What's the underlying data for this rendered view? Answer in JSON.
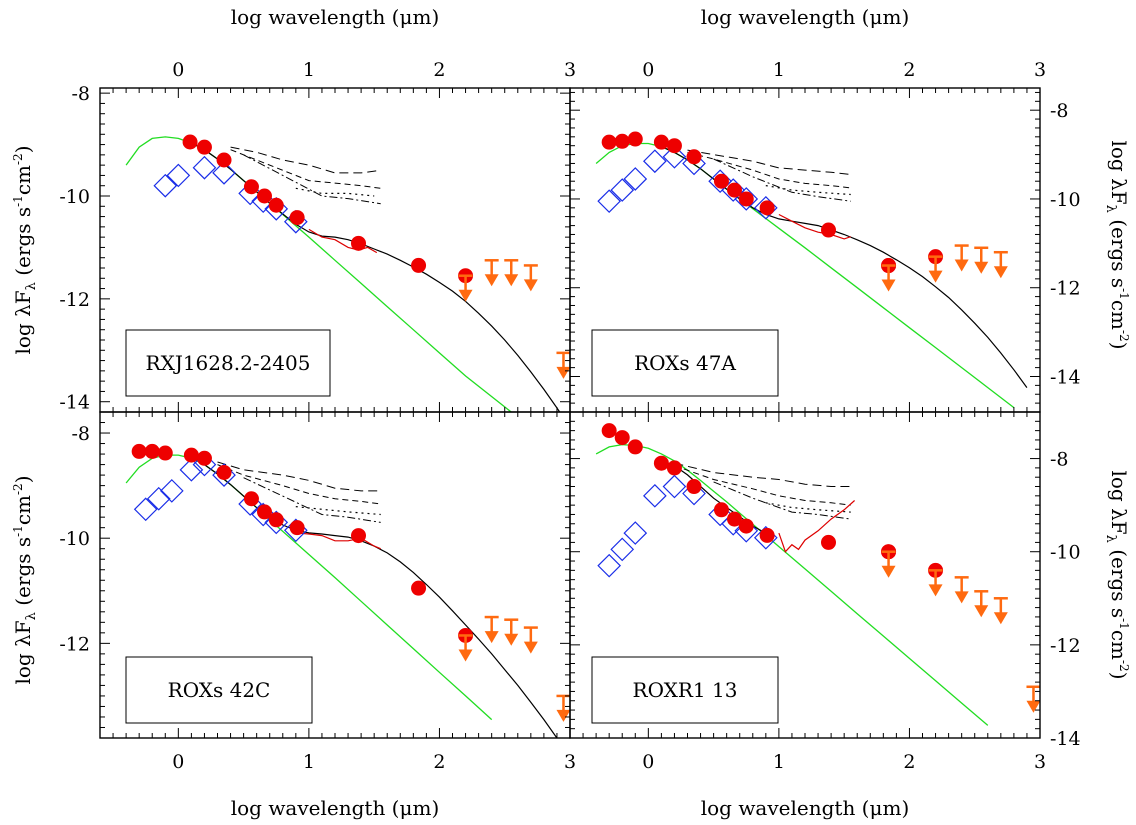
{
  "colors": {
    "photosphere": "#22dd22",
    "model": "#000000",
    "photometry": "#ee0000",
    "irs_spectrum": "#dd0000",
    "vlt_points": "#1a2ee8",
    "upper_limits": "#ff6a10"
  },
  "axis_text": {
    "xlabel": "log wavelength (μm)",
    "ylabel_left": "log λF",
    "ylabel_right": "log λF",
    "ylabel_sub": "λ",
    "ylabel_units": "(ergs s",
    "ylabel_units_tail": "cm",
    "ylabel_units_end": ")",
    "exp_neg1": "-1",
    "exp_neg2": "-2"
  },
  "chart_data": [
    {
      "type": "scatter",
      "label": "RXJ1628.2-2405",
      "xlim": [
        -0.6,
        3.0
      ],
      "ylim": [
        -14.2,
        -7.9
      ],
      "xticks": [
        "0",
        "1",
        "2",
        "3"
      ],
      "yticks": [
        "-8",
        "-10",
        "-12",
        "-14"
      ],
      "photometry_x": [
        0.09,
        0.2,
        0.35,
        0.56,
        0.66,
        0.75,
        0.91,
        1.38,
        1.84
      ],
      "photometry_y": [
        -8.95,
        -9.05,
        -9.3,
        -9.82,
        -10.0,
        -10.18,
        -10.42,
        -10.92,
        -11.35
      ],
      "vlt_x": [
        -0.1,
        0.0,
        0.2,
        0.35,
        0.55,
        0.65,
        0.75,
        0.9
      ],
      "vlt_y": [
        -9.8,
        -9.6,
        -9.45,
        -9.55,
        -9.95,
        -10.1,
        -10.25,
        -10.5
      ],
      "upper_limit_circles_x": [
        2.2
      ],
      "upper_limit_circles_y": [
        -11.55
      ],
      "upper_limits_x": [
        2.2,
        2.4,
        2.55,
        2.7,
        2.95
      ],
      "upper_limits_y": [
        -11.55,
        -11.25,
        -11.25,
        -11.35,
        -13.05
      ],
      "spectrum_x": [
        1.0,
        1.1,
        1.2,
        1.3,
        1.38,
        1.45,
        1.52
      ],
      "spectrum_y": [
        -10.65,
        -10.8,
        -10.85,
        -11.0,
        -11.05,
        -11.0,
        -11.1
      ],
      "photosphere_x": [
        -0.4,
        -0.3,
        -0.2,
        -0.1,
        0.0,
        0.1,
        0.2,
        0.3,
        0.4,
        0.5,
        0.6,
        0.7,
        0.8,
        0.9,
        1.0,
        1.2,
        1.4,
        1.6,
        1.8,
        2.0,
        2.2,
        2.5,
        2.8,
        3.0
      ],
      "photosphere_y": [
        -9.4,
        -9.05,
        -8.88,
        -8.85,
        -8.88,
        -8.97,
        -9.1,
        -9.28,
        -9.48,
        -9.7,
        -9.92,
        -10.14,
        -10.36,
        -10.58,
        -10.8,
        -11.25,
        -11.7,
        -12.15,
        -12.6,
        -13.05,
        -13.5,
        -14.1,
        -14.7,
        -15.1
      ],
      "model_x": [
        0.1,
        0.2,
        0.3,
        0.4,
        0.5,
        0.6,
        0.7,
        0.8,
        0.9,
        1.0,
        1.1,
        1.2,
        1.3,
        1.4,
        1.5,
        1.6,
        1.7,
        1.8,
        1.9,
        2.0,
        2.1,
        2.2,
        2.3,
        2.4,
        2.5,
        2.6,
        2.7,
        2.8,
        2.9,
        3.0
      ],
      "model_y": [
        -8.97,
        -9.1,
        -9.28,
        -9.48,
        -9.7,
        -9.92,
        -10.14,
        -10.35,
        -10.55,
        -10.7,
        -10.78,
        -10.8,
        -10.85,
        -10.93,
        -11.03,
        -11.13,
        -11.25,
        -11.38,
        -11.52,
        -11.68,
        -11.85,
        -12.05,
        -12.28,
        -12.53,
        -12.8,
        -13.1,
        -13.42,
        -13.76,
        -14.12,
        -14.5
      ],
      "dashed_a_x": [
        0.4,
        0.6,
        0.8,
        1.0,
        1.2,
        1.4,
        1.55
      ],
      "dashed_a_y": [
        -9.05,
        -9.15,
        -9.3,
        -9.4,
        -9.55,
        -9.55,
        -9.5
      ],
      "dashed_b_x": [
        0.4,
        0.6,
        0.8,
        1.0,
        1.2,
        1.4,
        1.55
      ],
      "dashed_b_y": [
        -9.1,
        -9.3,
        -9.5,
        -9.7,
        -9.75,
        -9.8,
        -9.85
      ],
      "dotted_x": [
        0.9,
        1.1,
        1.3,
        1.5
      ],
      "dotted_y": [
        -9.85,
        -9.95,
        -9.95,
        -10.0
      ],
      "dashdot_x": [
        0.5,
        0.8,
        1.1,
        1.3,
        1.55
      ],
      "dashdot_y": [
        -9.2,
        -9.6,
        -10.0,
        -10.05,
        -10.15
      ]
    },
    {
      "type": "scatter",
      "label": "ROXs 47A",
      "xlim": [
        -0.6,
        3.0
      ],
      "ylim": [
        -14.8,
        -7.5
      ],
      "xticks": [
        "0",
        "1",
        "2",
        "3"
      ],
      "yticks": [
        "-8",
        "-10",
        "-12",
        "-14"
      ],
      "photometry_x": [
        -0.3,
        -0.2,
        -0.1,
        0.1,
        0.2,
        0.35,
        0.56,
        0.66,
        0.75,
        0.91,
        1.38,
        1.84
      ],
      "photometry_y": [
        -8.72,
        -8.7,
        -8.65,
        -8.72,
        -8.8,
        -9.05,
        -9.6,
        -9.8,
        -10.0,
        -10.2,
        -10.7,
        -11.5
      ],
      "vlt_x": [
        -0.3,
        -0.2,
        -0.1,
        0.05,
        0.2,
        0.35,
        0.55,
        0.65,
        0.75,
        0.9
      ],
      "vlt_y": [
        -10.05,
        -9.8,
        -9.55,
        -9.15,
        -9.05,
        -9.2,
        -9.6,
        -9.8,
        -10.0,
        -10.2
      ],
      "upper_limit_circles_x": [
        1.84,
        2.2
      ],
      "upper_limit_circles_y": [
        -11.5,
        -11.3
      ],
      "upper_limits_x": [
        1.84,
        2.2,
        2.4,
        2.55,
        2.7
      ],
      "upper_limits_y": [
        -11.5,
        -11.3,
        -11.05,
        -11.1,
        -11.2
      ],
      "spectrum_x": [
        1.0,
        1.1,
        1.2,
        1.3,
        1.4,
        1.5,
        1.55
      ],
      "spectrum_y": [
        -10.35,
        -10.5,
        -10.65,
        -10.75,
        -10.8,
        -10.9,
        -10.85
      ],
      "photosphere_x": [
        -0.4,
        -0.3,
        -0.2,
        -0.1,
        0.0,
        0.1,
        0.2,
        0.3,
        0.4,
        0.5,
        0.6,
        0.7,
        0.8,
        0.9,
        1.0,
        1.2,
        1.4,
        1.6,
        1.8,
        2.0,
        2.2,
        2.4,
        2.6,
        2.8
      ],
      "photosphere_y": [
        -9.2,
        -8.95,
        -8.8,
        -8.75,
        -8.75,
        -8.82,
        -8.95,
        -9.12,
        -9.32,
        -9.55,
        -9.78,
        -10.0,
        -10.22,
        -10.44,
        -10.66,
        -11.1,
        -11.55,
        -12.0,
        -12.45,
        -12.9,
        -13.35,
        -13.8,
        -14.25,
        -14.7
      ],
      "model_x": [
        0.1,
        0.2,
        0.3,
        0.4,
        0.5,
        0.6,
        0.7,
        0.8,
        0.9,
        1.0,
        1.1,
        1.2,
        1.3,
        1.4,
        1.5,
        1.6,
        1.7,
        1.8,
        1.9,
        2.0,
        2.1,
        2.2,
        2.3,
        2.4,
        2.5,
        2.6,
        2.7,
        2.8,
        2.9
      ],
      "model_y": [
        -8.82,
        -8.95,
        -9.12,
        -9.32,
        -9.55,
        -9.78,
        -10.0,
        -10.2,
        -10.35,
        -10.45,
        -10.5,
        -10.55,
        -10.6,
        -10.7,
        -10.8,
        -10.92,
        -11.05,
        -11.2,
        -11.37,
        -11.55,
        -11.75,
        -11.98,
        -12.22,
        -12.5,
        -12.8,
        -13.12,
        -13.47,
        -13.85,
        -14.25
      ],
      "dashed_a_x": [
        0.3,
        0.5,
        0.8,
        1.0,
        1.2,
        1.4,
        1.55
      ],
      "dashed_a_y": [
        -8.9,
        -9.0,
        -9.15,
        -9.3,
        -9.35,
        -9.4,
        -9.45
      ],
      "dashed_b_x": [
        0.3,
        0.5,
        0.8,
        1.0,
        1.2,
        1.4,
        1.55
      ],
      "dashed_b_y": [
        -8.95,
        -9.1,
        -9.35,
        -9.55,
        -9.65,
        -9.7,
        -9.75
      ],
      "dotted_x": [
        0.9,
        1.1,
        1.3,
        1.55
      ],
      "dotted_y": [
        -9.7,
        -9.8,
        -9.85,
        -9.9
      ],
      "dashdot_x": [
        0.5,
        0.8,
        1.1,
        1.3,
        1.55
      ],
      "dashdot_y": [
        -9.1,
        -9.5,
        -9.85,
        -9.95,
        -10.05
      ]
    },
    {
      "type": "scatter",
      "label": "ROXs 42C",
      "xlim": [
        -0.6,
        3.0
      ],
      "ylim": [
        -13.8,
        -7.6
      ],
      "xticks": [
        "0",
        "1",
        "2",
        "3"
      ],
      "yticks": [
        "-8",
        "-10",
        "-12"
      ],
      "photometry_x": [
        -0.3,
        -0.2,
        -0.1,
        0.1,
        0.2,
        0.35,
        0.56,
        0.66,
        0.75,
        0.91,
        1.38,
        1.84
      ],
      "photometry_y": [
        -8.35,
        -8.35,
        -8.38,
        -8.42,
        -8.48,
        -8.75,
        -9.25,
        -9.5,
        -9.65,
        -9.8,
        -9.95,
        -10.95
      ],
      "vlt_x": [
        -0.25,
        -0.15,
        -0.05,
        0.1,
        0.2,
        0.35,
        0.55,
        0.65,
        0.75,
        0.9
      ],
      "vlt_y": [
        -9.45,
        -9.25,
        -9.1,
        -8.7,
        -8.6,
        -8.8,
        -9.35,
        -9.55,
        -9.7,
        -9.85
      ],
      "upper_limit_circles_x": [
        2.2
      ],
      "upper_limit_circles_y": [
        -11.85
      ],
      "upper_limits_x": [
        2.2,
        2.4,
        2.55,
        2.7,
        2.95
      ],
      "upper_limits_y": [
        -11.85,
        -11.5,
        -11.55,
        -11.7,
        -13.0
      ],
      "spectrum_x": [
        0.9,
        1.0,
        1.1,
        1.2,
        1.3,
        1.4,
        1.5,
        1.55
      ],
      "spectrum_y": [
        -9.9,
        -9.92,
        -9.95,
        -10.05,
        -10.05,
        -10.0,
        -10.15,
        -10.2
      ],
      "photosphere_x": [
        -0.4,
        -0.3,
        -0.2,
        -0.1,
        0.0,
        0.1,
        0.2,
        0.3,
        0.4,
        0.5,
        0.6,
        0.7,
        0.8,
        0.9,
        1.0,
        1.2,
        1.4,
        1.6,
        1.8,
        2.0,
        2.2,
        2.4
      ],
      "photosphere_y": [
        -8.95,
        -8.65,
        -8.48,
        -8.42,
        -8.42,
        -8.48,
        -8.6,
        -8.78,
        -8.98,
        -9.2,
        -9.42,
        -9.65,
        -9.87,
        -10.09,
        -10.31,
        -10.75,
        -11.2,
        -11.65,
        -12.1,
        -12.55,
        -13.0,
        -13.45
      ],
      "model_x": [
        0.1,
        0.2,
        0.3,
        0.4,
        0.5,
        0.6,
        0.7,
        0.8,
        0.9,
        1.0,
        1.1,
        1.2,
        1.3,
        1.4,
        1.5,
        1.6,
        1.7,
        1.8,
        1.9,
        2.0,
        2.1,
        2.2,
        2.3,
        2.4,
        2.5,
        2.6,
        2.7,
        2.8,
        2.9
      ],
      "model_y": [
        -8.45,
        -8.6,
        -8.78,
        -8.98,
        -9.2,
        -9.42,
        -9.6,
        -9.75,
        -9.85,
        -9.9,
        -9.92,
        -9.95,
        -9.98,
        -10.05,
        -10.15,
        -10.28,
        -10.45,
        -10.65,
        -10.88,
        -11.12,
        -11.38,
        -11.65,
        -11.92,
        -12.2,
        -12.5,
        -12.8,
        -13.12,
        -13.45,
        -13.8
      ],
      "dashed_a_x": [
        0.3,
        0.5,
        0.8,
        1.0,
        1.2,
        1.4,
        1.55
      ],
      "dashed_a_y": [
        -8.55,
        -8.7,
        -8.8,
        -8.9,
        -9.05,
        -9.1,
        -9.1
      ],
      "dashed_b_x": [
        0.3,
        0.5,
        0.8,
        1.0,
        1.2,
        1.4,
        1.55
      ],
      "dashed_b_y": [
        -8.6,
        -8.8,
        -9.0,
        -9.15,
        -9.25,
        -9.3,
        -9.35
      ],
      "dotted_x": [
        0.9,
        1.1,
        1.3,
        1.55
      ],
      "dotted_y": [
        -9.4,
        -9.45,
        -9.5,
        -9.55
      ],
      "dashdot_x": [
        0.5,
        0.8,
        1.1,
        1.3,
        1.55
      ],
      "dashdot_y": [
        -8.85,
        -9.2,
        -9.55,
        -9.6,
        -9.7
      ]
    },
    {
      "type": "scatter",
      "label": "ROXR1 13",
      "xlim": [
        -0.6,
        3.0
      ],
      "ylim": [
        -14.0,
        -7.0
      ],
      "xticks": [
        "0",
        "1",
        "2",
        "3"
      ],
      "yticks": [
        "-8",
        "-10",
        "-12",
        "-14"
      ],
      "photometry_x": [
        -0.3,
        -0.2,
        -0.1,
        0.1,
        0.2,
        0.35,
        0.56,
        0.66,
        0.75,
        0.91,
        1.38,
        1.84
      ],
      "photometry_y": [
        -7.4,
        -7.55,
        -7.75,
        -8.1,
        -8.2,
        -8.6,
        -9.1,
        -9.3,
        -9.45,
        -9.65,
        -9.8,
        -10.0
      ],
      "vlt_x": [
        -0.3,
        -0.2,
        -0.1,
        0.05,
        0.2,
        0.35,
        0.55,
        0.65,
        0.75,
        0.9
      ],
      "vlt_y": [
        -10.3,
        -9.95,
        -9.6,
        -8.8,
        -8.6,
        -8.75,
        -9.2,
        -9.4,
        -9.55,
        -9.7
      ],
      "upper_limit_circles_x": [
        1.84,
        2.2
      ],
      "upper_limit_circles_y": [
        -10.0,
        -10.4
      ],
      "upper_limits_x": [
        1.84,
        2.2,
        2.4,
        2.55,
        2.7,
        2.95
      ],
      "upper_limits_y": [
        -10.0,
        -10.4,
        -10.55,
        -10.85,
        -11.0,
        -12.9
      ],
      "spectrum_x": [
        1.0,
        1.05,
        1.1,
        1.15,
        1.2,
        1.3,
        1.4,
        1.5,
        1.58
      ],
      "spectrum_y": [
        -9.6,
        -10.0,
        -9.85,
        -9.95,
        -9.75,
        -9.55,
        -9.3,
        -9.1,
        -8.9
      ],
      "photosphere_x": [
        -0.4,
        -0.3,
        -0.2,
        -0.1,
        0.0,
        0.1,
        0.2,
        0.3,
        0.4,
        0.5,
        0.6,
        0.7,
        0.8,
        0.9,
        1.0,
        1.2,
        1.4,
        1.6,
        1.8,
        2.0,
        2.2,
        2.4,
        2.6
      ],
      "photosphere_y": [
        -7.9,
        -7.75,
        -7.7,
        -7.72,
        -7.78,
        -7.9,
        -8.05,
        -8.25,
        -8.47,
        -8.7,
        -8.93,
        -9.17,
        -9.41,
        -9.65,
        -9.89,
        -10.37,
        -10.85,
        -11.33,
        -11.81,
        -12.29,
        -12.77,
        -13.25,
        -13.73
      ],
      "model_x": [
        0.1,
        0.2,
        0.3,
        0.4,
        0.5,
        0.6,
        0.7,
        0.8,
        0.9
      ],
      "model_y": [
        -8.05,
        -8.15,
        -8.35,
        -8.6,
        -8.85,
        -9.05,
        -9.25,
        -9.45,
        -9.6
      ],
      "dashed_a_x": [
        0.2,
        0.5,
        0.8,
        1.0,
        1.2,
        1.4,
        1.55
      ],
      "dashed_a_y": [
        -8.1,
        -8.3,
        -8.4,
        -8.45,
        -8.55,
        -8.6,
        -8.6
      ],
      "dashed_b_x": [
        0.2,
        0.5,
        0.8,
        1.0,
        1.2,
        1.4,
        1.55
      ],
      "dashed_b_y": [
        -8.15,
        -8.45,
        -8.65,
        -8.8,
        -8.9,
        -8.95,
        -9.0
      ],
      "dotted_x": [
        0.9,
        1.1,
        1.3,
        1.55
      ],
      "dotted_y": [
        -8.95,
        -9.05,
        -9.1,
        -9.15
      ],
      "dashdot_x": [
        0.5,
        0.8,
        1.1,
        1.3,
        1.55
      ],
      "dashdot_y": [
        -8.5,
        -8.85,
        -9.15,
        -9.2,
        -9.3
      ]
    }
  ]
}
